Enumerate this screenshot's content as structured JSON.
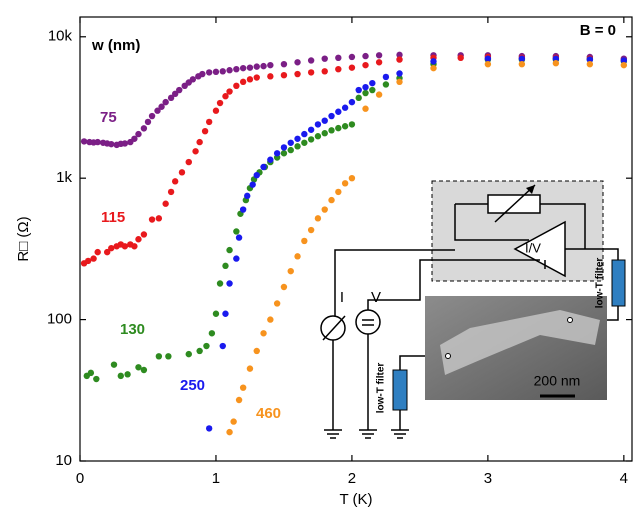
{
  "chart_data": {
    "type": "scatter",
    "x_label": "T (K)",
    "y_label": "R□ (Ω)",
    "annotations": [
      "w (nm)",
      "B = 0"
    ],
    "log_y": true,
    "xlim": [
      0,
      4.06
    ],
    "xticks": [
      0,
      1,
      2,
      3,
      4
    ],
    "ylim": [
      10,
      13800
    ],
    "yticks": [
      10,
      100,
      {
        "value": 1000,
        "label": "1k"
      },
      {
        "value": 10000,
        "label": "10k"
      }
    ],
    "series": [
      {
        "name": "75",
        "color": "#7b1f86",
        "x": [
          0.03,
          0.07,
          0.1,
          0.13,
          0.17,
          0.2,
          0.23,
          0.27,
          0.3,
          0.33,
          0.37,
          0.4,
          0.43,
          0.47,
          0.5,
          0.53,
          0.57,
          0.6,
          0.63,
          0.67,
          0.7,
          0.73,
          0.77,
          0.8,
          0.83,
          0.87,
          0.9,
          0.95,
          1.0,
          1.05,
          1.1,
          1.15,
          1.2,
          1.25,
          1.3,
          1.35,
          1.4,
          1.5,
          1.6,
          1.7,
          1.8,
          1.9,
          2.0,
          2.1,
          2.2,
          2.35,
          2.6,
          2.8,
          3.0,
          3.25,
          3.5,
          3.75,
          4.0
        ],
        "values": [
          1820,
          1800,
          1790,
          1800,
          1780,
          1760,
          1740,
          1720,
          1750,
          1760,
          1800,
          1900,
          2050,
          2250,
          2500,
          2750,
          3000,
          3200,
          3450,
          3700,
          3950,
          4200,
          4500,
          4750,
          5000,
          5250,
          5450,
          5600,
          5650,
          5700,
          5800,
          5900,
          6000,
          6050,
          6150,
          6200,
          6300,
          6400,
          6600,
          6800,
          7000,
          7100,
          7200,
          7300,
          7400,
          7450,
          7400,
          7400,
          7400,
          7300,
          7300,
          7200,
          7000
        ]
      },
      {
        "name": "115",
        "color": "#e8191d",
        "x": [
          0.03,
          0.06,
          0.1,
          0.13,
          0.2,
          0.23,
          0.27,
          0.3,
          0.33,
          0.37,
          0.4,
          0.43,
          0.47,
          0.53,
          0.58,
          0.63,
          0.67,
          0.7,
          0.75,
          0.8,
          0.85,
          0.88,
          0.92,
          0.95,
          1.0,
          1.03,
          1.07,
          1.1,
          1.15,
          1.2,
          1.25,
          1.3,
          1.4,
          1.5,
          1.6,
          1.7,
          1.8,
          1.9,
          2.0,
          2.1,
          2.2,
          2.35,
          2.6,
          2.8,
          3.0,
          3.25,
          3.5,
          3.75,
          4.0
        ],
        "values": [
          250,
          260,
          270,
          300,
          300,
          320,
          330,
          340,
          330,
          340,
          330,
          370,
          400,
          510,
          520,
          660,
          800,
          950,
          1100,
          1300,
          1550,
          1800,
          2150,
          2500,
          3000,
          3400,
          3800,
          4100,
          4500,
          4800,
          5000,
          5150,
          5250,
          5350,
          5450,
          5600,
          5700,
          5900,
          6050,
          6300,
          6600,
          6900,
          7100,
          7100,
          7200,
          7100,
          7100,
          7000,
          6800
        ]
      },
      {
        "name": "130",
        "color": "#2e8b20",
        "x": [
          0.05,
          0.08,
          0.12,
          0.25,
          0.3,
          0.35,
          0.43,
          0.47,
          0.58,
          0.65,
          0.8,
          0.88,
          0.93,
          0.97,
          1.0,
          1.03,
          1.07,
          1.1,
          1.15,
          1.18,
          1.22,
          1.25,
          1.28,
          1.32,
          1.36,
          1.4,
          1.45,
          1.5,
          1.55,
          1.6,
          1.65,
          1.7,
          1.75,
          1.8,
          1.85,
          1.9,
          1.95,
          2.0,
          2.05,
          2.1,
          2.15,
          2.25,
          2.35,
          2.6,
          3.0,
          3.25,
          3.5,
          3.75,
          4.0
        ],
        "values": [
          40,
          42,
          38,
          48,
          40,
          41,
          46,
          44,
          55,
          55,
          57,
          60,
          65,
          80,
          110,
          180,
          240,
          310,
          420,
          560,
          700,
          850,
          980,
          1100,
          1200,
          1300,
          1400,
          1500,
          1580,
          1680,
          1780,
          1880,
          1980,
          2080,
          2180,
          2260,
          2330,
          2400,
          3700,
          4000,
          4200,
          4600,
          5100,
          6400,
          6900,
          6900,
          6900,
          6900,
          6700
        ]
      },
      {
        "name": "250",
        "color": "#1a1aee",
        "x": [
          0.95,
          1.05,
          1.07,
          1.1,
          1.15,
          1.17,
          1.2,
          1.23,
          1.27,
          1.3,
          1.35,
          1.4,
          1.45,
          1.5,
          1.55,
          1.6,
          1.65,
          1.7,
          1.75,
          1.8,
          1.85,
          1.9,
          1.95,
          2.0,
          2.05,
          2.1,
          2.15,
          2.25,
          2.35,
          2.6,
          3.0,
          3.25,
          3.5,
          3.75,
          4.0
        ],
        "values": [
          17,
          65,
          110,
          180,
          270,
          380,
          600,
          750,
          900,
          1050,
          1200,
          1350,
          1500,
          1650,
          1780,
          1900,
          2050,
          2200,
          2400,
          2550,
          2750,
          2950,
          3150,
          3450,
          4200,
          4400,
          4700,
          5200,
          5500,
          6700,
          7000,
          7000,
          7000,
          6900,
          6800
        ]
      },
      {
        "name": "460",
        "color": "#f7931e",
        "x": [
          1.1,
          1.13,
          1.17,
          1.2,
          1.25,
          1.3,
          1.35,
          1.4,
          1.45,
          1.5,
          1.55,
          1.6,
          1.65,
          1.7,
          1.75,
          1.8,
          1.85,
          1.9,
          1.95,
          2.0,
          2.1,
          2.2,
          2.35,
          2.6,
          3.0,
          3.25,
          3.5,
          3.75,
          4.0
        ],
        "values": [
          16,
          19,
          27,
          33,
          45,
          60,
          80,
          100,
          130,
          170,
          220,
          280,
          360,
          430,
          520,
          600,
          700,
          800,
          920,
          1000,
          3100,
          3900,
          4800,
          6000,
          6400,
          6400,
          6500,
          6400,
          6300
        ]
      }
    ],
    "inset": {
      "current_label": "I",
      "voltage_label": "V",
      "amplifier_label": "I/V",
      "filter_labels": [
        "low-T filter",
        "low-T filter"
      ],
      "scale_label": "200 nm"
    }
  }
}
